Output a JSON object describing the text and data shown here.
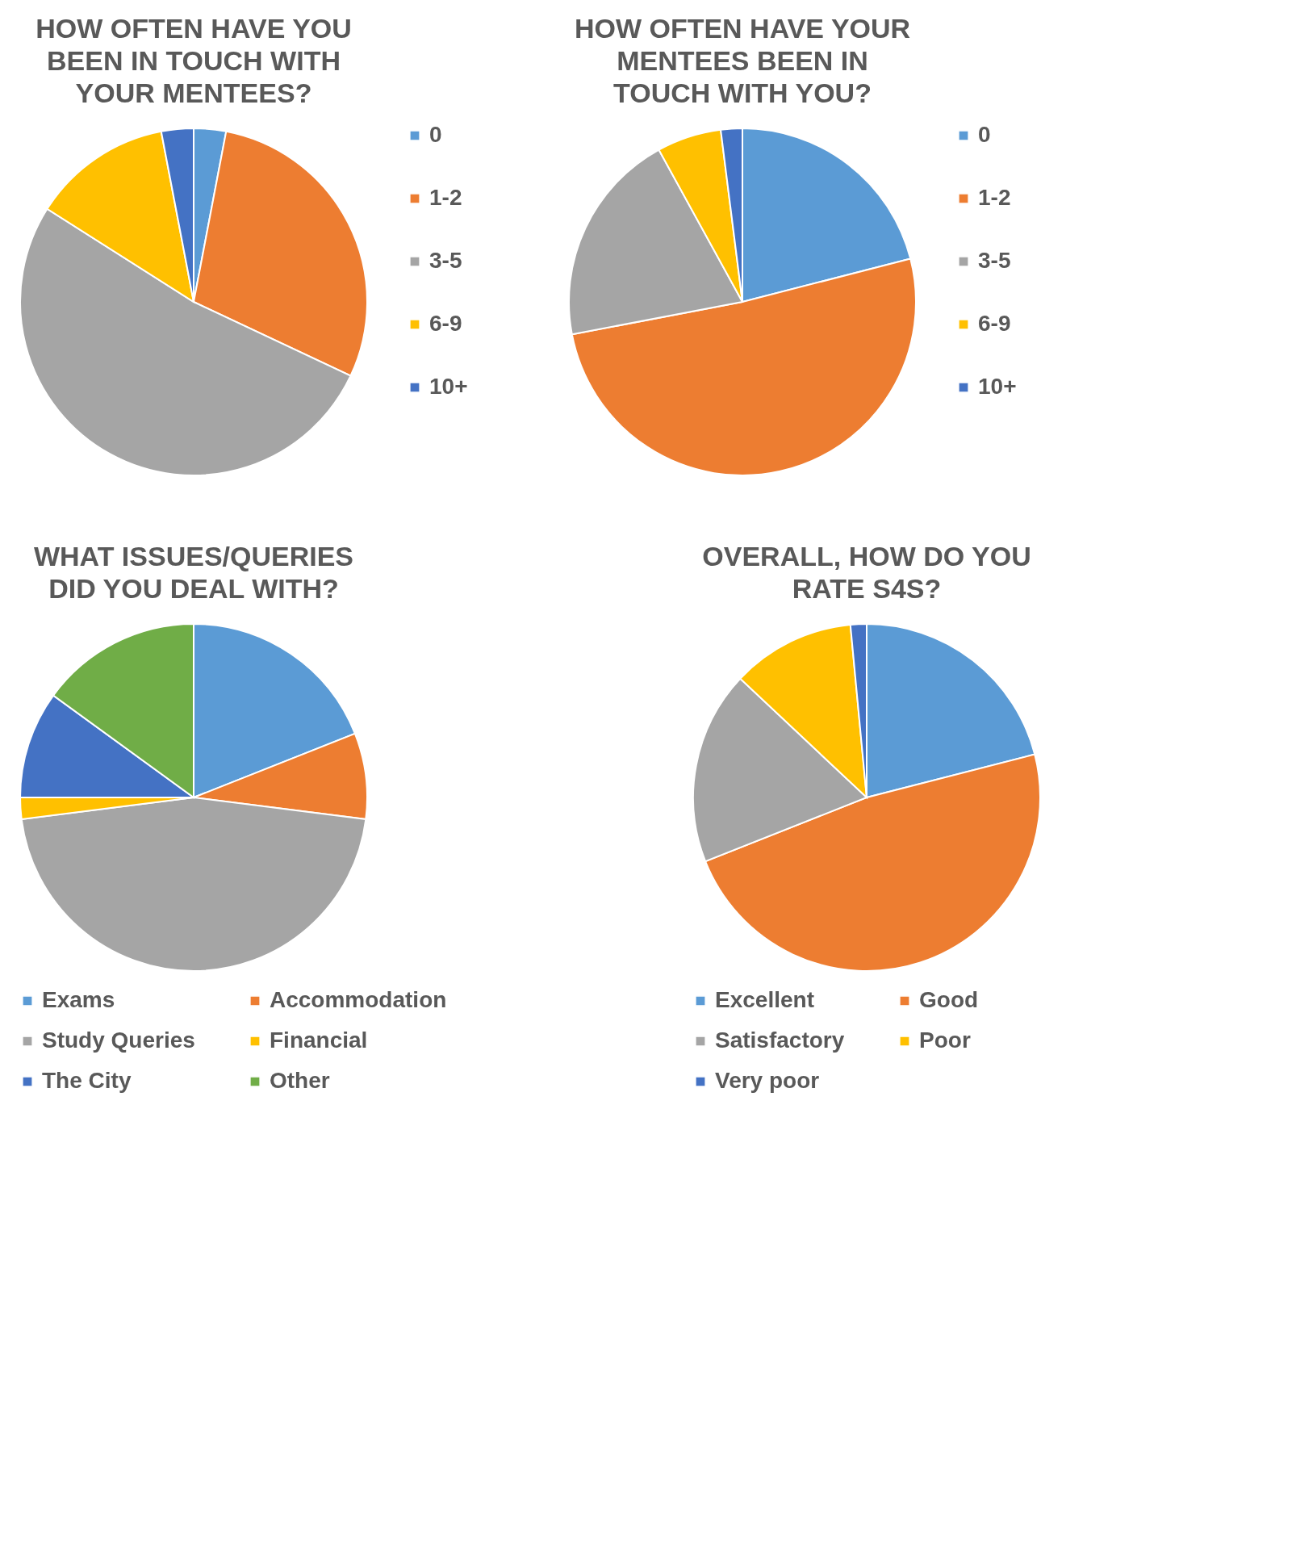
{
  "chart_data": [
    {
      "type": "pie",
      "title": "HOW OFTEN HAVE YOU BEEN IN TOUCH WITH YOUR MENTEES?",
      "categories": [
        "0",
        "1-2",
        "3-5",
        "6-9",
        "10+"
      ],
      "values": [
        3,
        29,
        52,
        13,
        3
      ],
      "colors": [
        "#5b9bd5",
        "#ed7d31",
        "#a5a5a5",
        "#ffc000",
        "#4472c4"
      ],
      "legend": "right"
    },
    {
      "type": "pie",
      "title": "HOW OFTEN HAVE YOUR MENTEES BEEN IN TOUCH WITH YOU?",
      "categories": [
        "0",
        "1-2",
        "3-5",
        "6-9",
        "10+"
      ],
      "values": [
        21,
        51,
        20,
        6,
        2
      ],
      "colors": [
        "#5b9bd5",
        "#ed7d31",
        "#a5a5a5",
        "#ffc000",
        "#4472c4"
      ],
      "legend": "right"
    },
    {
      "type": "pie",
      "title": "WHAT ISSUES/QUERIES DID YOU DEAL WITH?",
      "categories": [
        "Exams",
        "Accommodation",
        "Study Queries",
        "Financial",
        "The City",
        "Other"
      ],
      "values": [
        19,
        8,
        46,
        2,
        10,
        15
      ],
      "colors": [
        "#5b9bd5",
        "#ed7d31",
        "#a5a5a5",
        "#ffc000",
        "#4472c4",
        "#70ad47"
      ],
      "legend": "bottom"
    },
    {
      "type": "pie",
      "title": "OVERALL, HOW DO YOU RATE S4S?",
      "categories": [
        "Excellent",
        "Good",
        "Satisfactory",
        "Poor",
        "Very poor"
      ],
      "values": [
        21,
        48,
        18,
        11.5,
        1.5
      ],
      "colors": [
        "#5b9bd5",
        "#ed7d31",
        "#a5a5a5",
        "#ffc000",
        "#4472c4"
      ],
      "legend": "bottom"
    }
  ]
}
